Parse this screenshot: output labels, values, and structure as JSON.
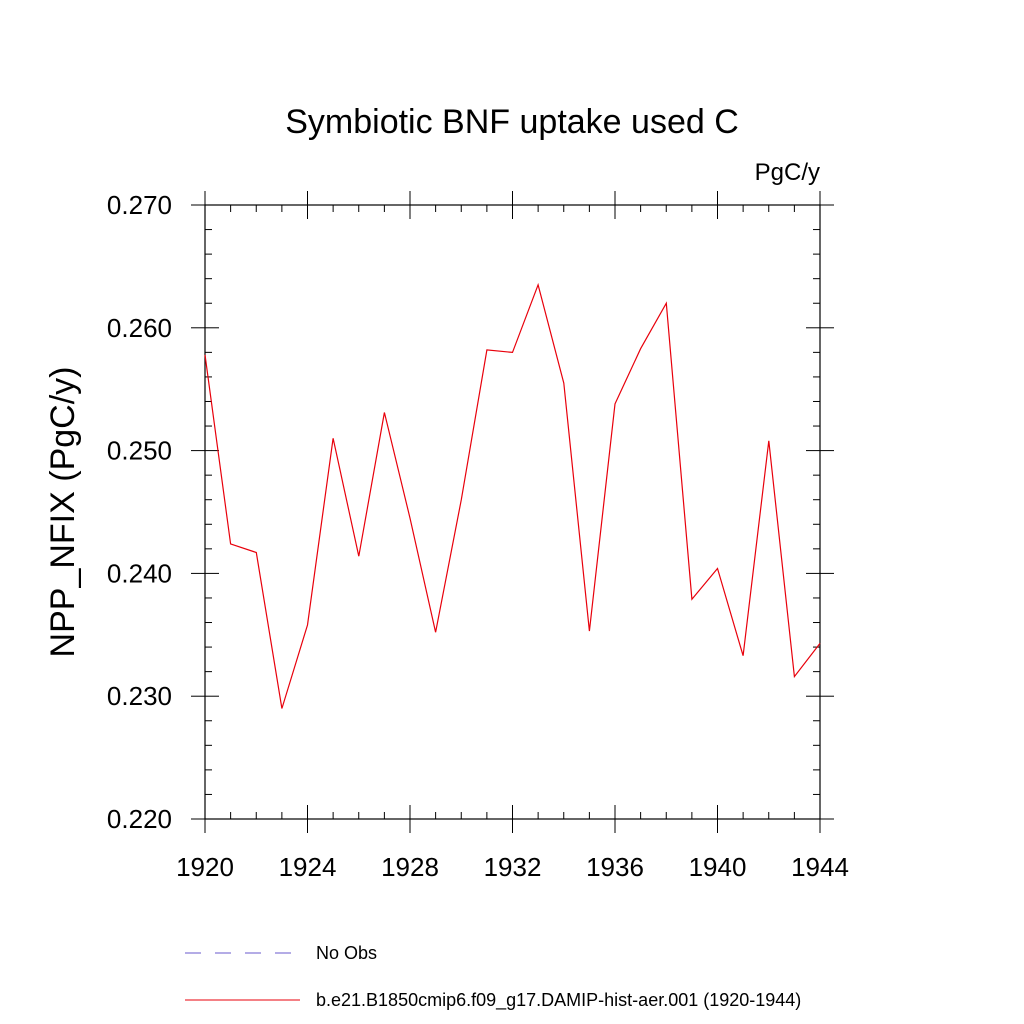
{
  "chart_data": {
    "type": "line",
    "title": "Symbiotic BNF uptake used C",
    "units_label": "PgC/y",
    "ylabel": "NPP_NFIX  (PgC/y)",
    "xlabel": "",
    "xlim": [
      1920,
      1944
    ],
    "ylim": [
      0.22,
      0.27
    ],
    "x_ticks": [
      1920,
      1924,
      1928,
      1932,
      1936,
      1940,
      1944
    ],
    "y_ticks": [
      "0.220",
      "0.230",
      "0.240",
      "0.250",
      "0.260",
      "0.270"
    ],
    "grid": false,
    "legend_position": "bottom",
    "legend": [
      {
        "label": "No Obs",
        "color": "#6a5acd",
        "style": "dashed"
      },
      {
        "label": "b.e21.B1850cmip6.f09_g17.DAMIP-hist-aer.001 (1920-1944)",
        "color": "#e8000b",
        "style": "solid"
      }
    ],
    "series": [
      {
        "name": "b.e21.B1850cmip6.f09_g17.DAMIP-hist-aer.001 (1920-1944)",
        "color": "#e8000b",
        "x": [
          1920,
          1921,
          1922,
          1923,
          1924,
          1925,
          1926,
          1927,
          1928,
          1929,
          1930,
          1931,
          1932,
          1933,
          1934,
          1935,
          1936,
          1937,
          1938,
          1939,
          1940,
          1941,
          1942,
          1943,
          1944
        ],
        "values": [
          0.2578,
          0.2424,
          0.2417,
          0.229,
          0.2358,
          0.251,
          0.2414,
          0.2531,
          0.2445,
          0.2352,
          0.246,
          0.2582,
          0.258,
          0.2635,
          0.2555,
          0.2353,
          0.2538,
          0.2583,
          0.262,
          0.2379,
          0.2404,
          0.2333,
          0.2508,
          0.2316,
          0.2343
        ]
      }
    ]
  }
}
